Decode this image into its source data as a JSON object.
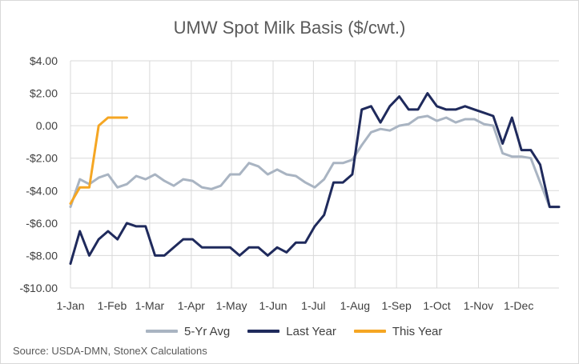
{
  "chart_data": {
    "type": "line",
    "title": "UMW Spot Milk Basis ($/cwt.)",
    "source": "Source: USDA-DMN, StoneX Calculations",
    "ylim": [
      -10,
      4
    ],
    "yticks": [
      4,
      2,
      0,
      -2,
      -4,
      -6,
      -8,
      -10
    ],
    "ytick_labels": [
      "$4.00",
      "$2.00",
      "0.00",
      "-$2.00",
      "-$4.00",
      "-$6.00",
      "-$8.00",
      "-$10.00"
    ],
    "xlim": [
      0,
      52
    ],
    "xticks": [
      0,
      4.43,
      8.43,
      12.86,
      17.14,
      21.57,
      25.86,
      30.29,
      34.71,
      39,
      43.43,
      47.71
    ],
    "xtick_labels": [
      "1-Jan",
      "1-Feb",
      "1-Mar",
      "1-Apr",
      "1-May",
      "1-Jun",
      "1-Jul",
      "1-Aug",
      "1-Sep",
      "1-Oct",
      "1-Nov",
      "1-Dec"
    ],
    "grid": true,
    "legend_position": "bottom",
    "series": [
      {
        "name": "5-Yr Avg",
        "color": "#a9b4c2",
        "x": [
          0,
          1,
          2,
          3,
          4,
          5,
          6,
          7,
          8,
          9,
          10,
          11,
          12,
          13,
          14,
          15,
          16,
          17,
          18,
          19,
          20,
          21,
          22,
          23,
          24,
          25,
          26,
          27,
          28,
          29,
          30,
          31,
          32,
          33,
          34,
          35,
          36,
          37,
          38,
          39,
          40,
          41,
          42,
          43,
          44,
          45,
          46,
          47,
          48,
          49,
          50,
          51,
          52
        ],
        "values": [
          -5.0,
          -3.3,
          -3.6,
          -3.2,
          -3.0,
          -3.8,
          -3.6,
          -3.1,
          -3.3,
          -3.0,
          -3.4,
          -3.7,
          -3.3,
          -3.4,
          -3.8,
          -3.9,
          -3.7,
          -3.0,
          -3.0,
          -2.3,
          -2.5,
          -3.0,
          -2.7,
          -3.0,
          -3.1,
          -3.5,
          -3.8,
          -3.3,
          -2.3,
          -2.3,
          -2.1,
          -1.2,
          -0.4,
          -0.2,
          -0.3,
          0.0,
          0.1,
          0.5,
          0.6,
          0.3,
          0.5,
          0.2,
          0.4,
          0.4,
          0.1,
          0.0,
          -1.7,
          -1.9,
          -1.9,
          -2.0,
          -3.5,
          -5.0,
          -5.0
        ]
      },
      {
        "name": "Last Year",
        "color": "#1f2a5c",
        "x": [
          0,
          1,
          2,
          3,
          4,
          5,
          6,
          7,
          8,
          9,
          10,
          11,
          12,
          13,
          14,
          15,
          16,
          17,
          18,
          19,
          20,
          21,
          22,
          23,
          24,
          25,
          26,
          27,
          28,
          29,
          30,
          31,
          32,
          33,
          34,
          35,
          36,
          37,
          38,
          39,
          40,
          41,
          42,
          43,
          44,
          45,
          46,
          47,
          48,
          49,
          50,
          51,
          52
        ],
        "values": [
          -8.5,
          -6.5,
          -8.0,
          -7.0,
          -6.5,
          -7.0,
          -6.0,
          -6.2,
          -6.2,
          -8.0,
          -8.0,
          -7.5,
          -7.0,
          -7.0,
          -7.5,
          -7.5,
          -7.5,
          -7.5,
          -8.0,
          -7.5,
          -7.5,
          -8.0,
          -7.5,
          -7.8,
          -7.2,
          -7.2,
          -6.2,
          -5.5,
          -3.5,
          -3.5,
          -3.0,
          1.0,
          1.2,
          0.2,
          1.2,
          1.8,
          1.0,
          1.0,
          2.0,
          1.2,
          1.0,
          1.0,
          1.2,
          1.0,
          0.8,
          0.6,
          -1.1,
          0.5,
          -1.5,
          -1.5,
          -2.4,
          -5.0,
          -5.0
        ]
      },
      {
        "name": "This Year",
        "color": "#f5a623",
        "x": [
          0,
          1,
          2,
          3,
          4,
          5,
          6
        ],
        "values": [
          -4.8,
          -3.8,
          -3.8,
          0.0,
          0.5,
          0.5,
          0.5
        ]
      }
    ]
  }
}
